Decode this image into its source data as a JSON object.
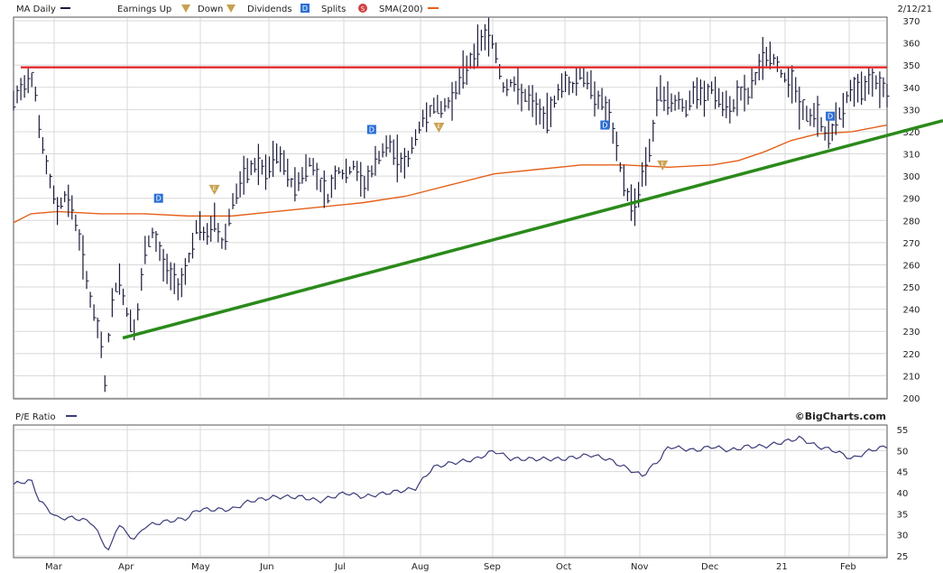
{
  "chart_data": [
    {
      "type": "ohlc",
      "title": "MA Daily",
      "date_label": "2/12/21",
      "legend": {
        "earnings_up": "Earnings Up",
        "earnings_down": "Down",
        "dividends": "Dividends",
        "splits": "Splits",
        "sma": "SMA(200)",
        "earnings_glyph": "E",
        "dividend_glyph": "D",
        "split_glyph": "S"
      },
      "ylim": [
        200,
        370
      ],
      "y_ticks": [
        200,
        210,
        220,
        230,
        240,
        250,
        260,
        270,
        280,
        290,
        300,
        310,
        320,
        330,
        340,
        350,
        360,
        370
      ],
      "x_months": [
        "Mar",
        "Apr",
        "May",
        "Jun",
        "Jul",
        "Aug",
        "Sep",
        "Oct",
        "Nov",
        "Dec",
        "21",
        "Feb"
      ],
      "colors": {
        "price": "#1a1a3a",
        "sma": "#e5601a",
        "resistance": "#e02020",
        "trend": "#2a8a1a",
        "dividend": "#2b6fd6",
        "earnings": "#c8a050"
      },
      "resistance_level": 349,
      "trendline": [
        {
          "x": 0.125,
          "y": 227
        },
        {
          "x": 1.07,
          "y": 325
        }
      ],
      "price_path": [
        [
          0,
          333
        ],
        [
          0.01,
          340
        ],
        [
          0.02,
          346
        ],
        [
          0.025,
          338
        ],
        [
          0.03,
          320
        ],
        [
          0.04,
          300
        ],
        [
          0.05,
          285
        ],
        [
          0.06,
          292
        ],
        [
          0.07,
          282
        ],
        [
          0.08,
          262
        ],
        [
          0.09,
          240
        ],
        [
          0.1,
          225
        ],
        [
          0.105,
          205
        ],
        [
          0.11,
          235
        ],
        [
          0.12,
          256
        ],
        [
          0.13,
          238
        ],
        [
          0.14,
          230
        ],
        [
          0.15,
          265
        ],
        [
          0.16,
          275
        ],
        [
          0.17,
          262
        ],
        [
          0.18,
          255
        ],
        [
          0.19,
          250
        ],
        [
          0.2,
          262
        ],
        [
          0.21,
          278
        ],
        [
          0.22,
          272
        ],
        [
          0.23,
          280
        ],
        [
          0.24,
          268
        ],
        [
          0.25,
          288
        ],
        [
          0.26,
          296
        ],
        [
          0.27,
          303
        ],
        [
          0.28,
          306
        ],
        [
          0.29,
          300
        ],
        [
          0.3,
          310
        ],
        [
          0.31,
          305
        ],
        [
          0.32,
          295
        ],
        [
          0.33,
          300
        ],
        [
          0.34,
          307
        ],
        [
          0.35,
          298
        ],
        [
          0.36,
          290
        ],
        [
          0.37,
          303
        ],
        [
          0.38,
          300
        ],
        [
          0.39,
          305
        ],
        [
          0.4,
          295
        ],
        [
          0.41,
          302
        ],
        [
          0.42,
          310
        ],
        [
          0.43,
          314
        ],
        [
          0.44,
          308
        ],
        [
          0.45,
          305
        ],
        [
          0.46,
          318
        ],
        [
          0.47,
          326
        ],
        [
          0.48,
          332
        ],
        [
          0.49,
          330
        ],
        [
          0.5,
          334
        ],
        [
          0.51,
          342
        ],
        [
          0.52,
          350
        ],
        [
          0.53,
          357
        ],
        [
          0.54,
          364
        ],
        [
          0.55,
          360
        ],
        [
          0.56,
          340
        ],
        [
          0.57,
          342
        ],
        [
          0.58,
          338
        ],
        [
          0.6,
          330
        ],
        [
          0.61,
          325
        ],
        [
          0.62,
          335
        ],
        [
          0.63,
          343
        ],
        [
          0.64,
          340
        ],
        [
          0.65,
          347
        ],
        [
          0.66,
          340
        ],
        [
          0.67,
          335
        ],
        [
          0.68,
          330
        ],
        [
          0.69,
          312
        ],
        [
          0.7,
          295
        ],
        [
          0.71,
          285
        ],
        [
          0.72,
          300
        ],
        [
          0.73,
          315
        ],
        [
          0.74,
          340
        ],
        [
          0.75,
          332
        ],
        [
          0.76,
          335
        ],
        [
          0.77,
          330
        ],
        [
          0.78,
          338
        ],
        [
          0.79,
          335
        ],
        [
          0.8,
          340
        ],
        [
          0.81,
          333
        ],
        [
          0.82,
          328
        ],
        [
          0.83,
          338
        ],
        [
          0.84,
          335
        ],
        [
          0.85,
          345
        ],
        [
          0.86,
          355
        ],
        [
          0.87,
          353
        ],
        [
          0.88,
          345
        ],
        [
          0.89,
          344
        ],
        [
          0.9,
          332
        ],
        [
          0.91,
          326
        ],
        [
          0.92,
          328
        ],
        [
          0.93,
          318
        ],
        [
          0.94,
          322
        ],
        [
          0.95,
          332
        ],
        [
          0.96,
          340
        ],
        [
          0.97,
          337
        ],
        [
          0.98,
          345
        ],
        [
          0.99,
          342
        ],
        [
          1.0,
          338
        ]
      ],
      "sma_path": [
        [
          0,
          279
        ],
        [
          0.02,
          283
        ],
        [
          0.05,
          284
        ],
        [
          0.1,
          283
        ],
        [
          0.15,
          283
        ],
        [
          0.2,
          282
        ],
        [
          0.25,
          282
        ],
        [
          0.3,
          284
        ],
        [
          0.35,
          286
        ],
        [
          0.4,
          288
        ],
        [
          0.45,
          291
        ],
        [
          0.5,
          296
        ],
        [
          0.55,
          301
        ],
        [
          0.6,
          303
        ],
        [
          0.65,
          305
        ],
        [
          0.7,
          305
        ],
        [
          0.75,
          304
        ],
        [
          0.8,
          305
        ],
        [
          0.83,
          307
        ],
        [
          0.86,
          311
        ],
        [
          0.89,
          316
        ],
        [
          0.92,
          319
        ],
        [
          0.96,
          320
        ],
        [
          1.0,
          323
        ]
      ],
      "dividend_markers": [
        {
          "x": 0.166,
          "y": 290
        },
        {
          "x": 0.41,
          "y": 321
        },
        {
          "x": 0.677,
          "y": 323
        },
        {
          "x": 0.935,
          "y": 327
        }
      ],
      "earnings_down_markers": [
        {
          "x": 0.23,
          "y": 294
        },
        {
          "x": 0.487,
          "y": 322
        },
        {
          "x": 0.743,
          "y": 305
        }
      ]
    },
    {
      "type": "line",
      "title": "P/E Ratio",
      "watermark": "©BigCharts.com",
      "ylim": [
        25,
        55
      ],
      "y_ticks": [
        25,
        30,
        35,
        40,
        45,
        50,
        55
      ],
      "colors": {
        "line": "#3b3b7a"
      },
      "pe_path": [
        [
          0,
          42
        ],
        [
          0.02,
          43
        ],
        [
          0.03,
          38
        ],
        [
          0.05,
          34
        ],
        [
          0.07,
          34
        ],
        [
          0.09,
          33
        ],
        [
          0.1,
          29
        ],
        [
          0.11,
          26
        ],
        [
          0.12,
          33
        ],
        [
          0.13,
          30
        ],
        [
          0.14,
          29
        ],
        [
          0.15,
          32
        ],
        [
          0.17,
          33
        ],
        [
          0.2,
          34
        ],
        [
          0.21,
          36
        ],
        [
          0.23,
          36
        ],
        [
          0.25,
          36
        ],
        [
          0.27,
          38
        ],
        [
          0.3,
          39
        ],
        [
          0.33,
          39
        ],
        [
          0.35,
          38
        ],
        [
          0.38,
          40
        ],
        [
          0.4,
          39
        ],
        [
          0.43,
          40
        ],
        [
          0.46,
          41
        ],
        [
          0.48,
          46
        ],
        [
          0.5,
          47
        ],
        [
          0.53,
          48
        ],
        [
          0.55,
          50
        ],
        [
          0.57,
          48
        ],
        [
          0.6,
          48
        ],
        [
          0.63,
          48
        ],
        [
          0.66,
          49
        ],
        [
          0.68,
          48
        ],
        [
          0.7,
          46
        ],
        [
          0.72,
          44
        ],
        [
          0.74,
          48
        ],
        [
          0.75,
          51
        ],
        [
          0.78,
          50
        ],
        [
          0.8,
          51
        ],
        [
          0.82,
          50
        ],
        [
          0.84,
          51
        ],
        [
          0.86,
          51
        ],
        [
          0.88,
          52
        ],
        [
          0.9,
          53
        ],
        [
          0.92,
          51
        ],
        [
          0.94,
          50
        ],
        [
          0.96,
          48
        ],
        [
          0.98,
          50
        ],
        [
          1.0,
          51
        ]
      ]
    }
  ]
}
